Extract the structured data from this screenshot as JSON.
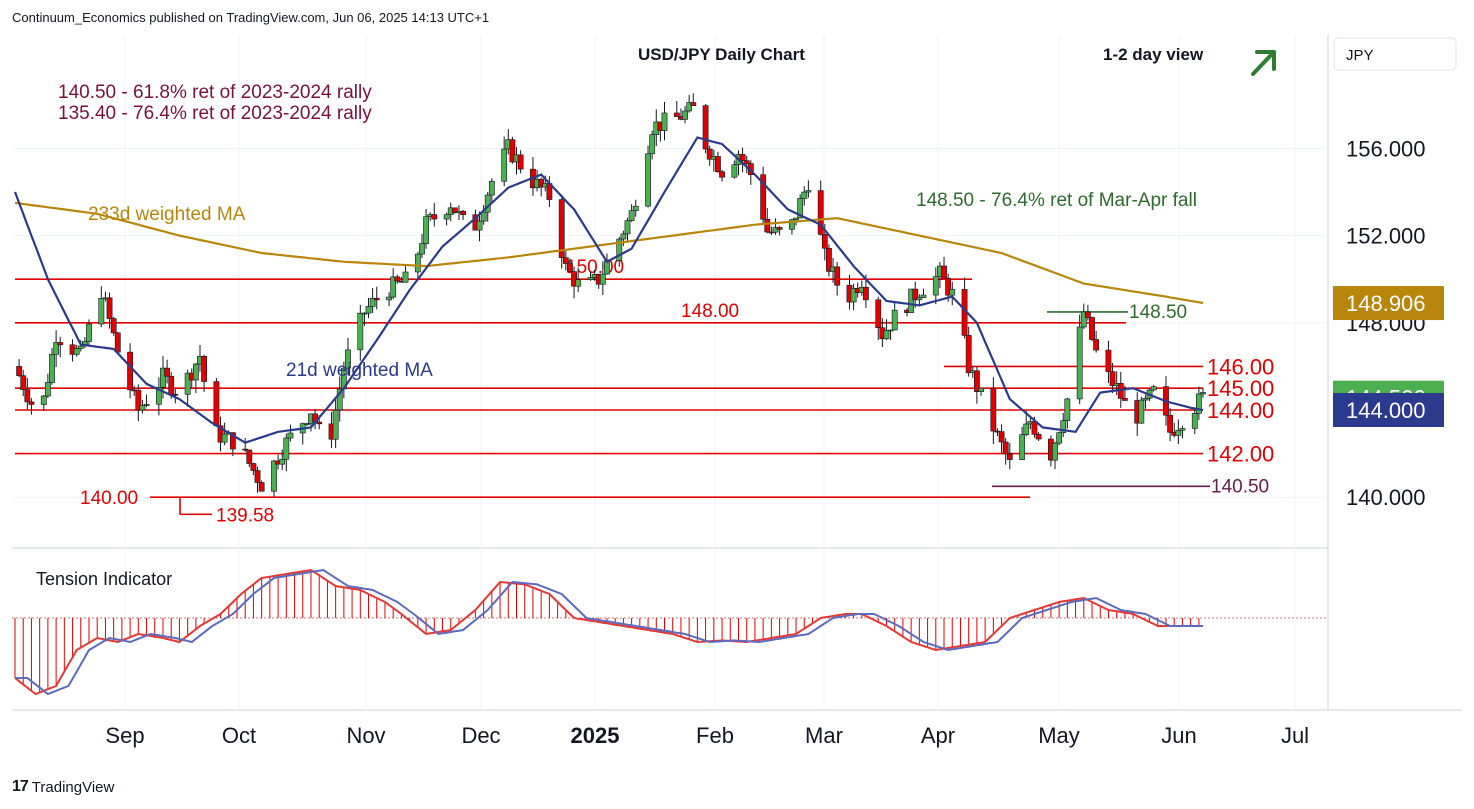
{
  "header": {
    "publisher": "Continuum_Economics published on TradingView.com, Jun 06, 2025 14:13 UTC+1"
  },
  "footer": {
    "brand": "TradingView",
    "brand_mark": "17"
  },
  "chart_data": {
    "type": "candlestick",
    "title": "USD/JPY Daily Chart",
    "view": "1-2 day view",
    "view_direction": "up",
    "currency": "JPY",
    "y_ticks": [
      "156.000",
      "152.000",
      "148.000",
      "140.000"
    ],
    "y_range": [
      138.0,
      158.5
    ],
    "x_months": [
      "Sep",
      "Oct",
      "Nov",
      "Dec",
      "2025",
      "Feb",
      "Mar",
      "Apr",
      "May",
      "Jun",
      "Jul"
    ],
    "annotations": {
      "ret_61": "140.50 - 61.8% ret of 2023-2024 rally",
      "ret_76": "135.40 - 76.4% ret of 2023-2024 rally",
      "ma233_label": "233d weighted MA",
      "ma21_label": "21d weighted MA",
      "marapr": "148.50 - 76.4% ret of Mar-Apr fall",
      "tension_label": "Tension Indicator"
    },
    "levels": [
      {
        "value": 150.0,
        "label": "150.00"
      },
      {
        "value": 148.0,
        "label": "148.00"
      },
      {
        "value": 148.5,
        "label": "148.50"
      },
      {
        "value": 146.0,
        "label": "146.00"
      },
      {
        "value": 145.0,
        "label": "145.00"
      },
      {
        "value": 144.0,
        "label": "144.00"
      },
      {
        "value": 142.0,
        "label": "142.00"
      },
      {
        "value": 140.5,
        "label": "140.50"
      },
      {
        "value": 140.0,
        "label": "140.00"
      },
      {
        "value": 139.58,
        "label": "139.58"
      }
    ],
    "price_badges": [
      {
        "value": "148.906",
        "color": "#b8860b"
      },
      {
        "value": "144.566",
        "color": "#4caf50"
      },
      {
        "value": "144.000",
        "color": "#2b3a8c"
      }
    ],
    "colors": {
      "up": "#4caf50",
      "down": "#e00000",
      "ma233": "#b8860b",
      "ma21": "#2b3a8c",
      "level": "#e00000"
    },
    "close_path": [
      [
        0,
        146.0
      ],
      [
        6,
        143.5
      ],
      [
        10,
        147.5
      ],
      [
        16,
        146.5
      ],
      [
        21,
        149.5
      ],
      [
        26,
        146
      ],
      [
        30,
        144
      ],
      [
        36,
        145.5
      ],
      [
        40,
        144.8
      ],
      [
        45,
        146.5
      ],
      [
        48,
        143
      ],
      [
        54,
        142.5
      ],
      [
        60,
        140.6
      ],
      [
        66,
        142.5
      ],
      [
        72,
        144.0
      ],
      [
        76,
        142.0
      ],
      [
        80,
        146
      ],
      [
        85,
        148.5
      ],
      [
        90,
        149.5
      ],
      [
        96,
        150
      ],
      [
        100,
        152.5
      ],
      [
        106,
        153.5
      ],
      [
        111,
        152
      ],
      [
        116,
        154.5
      ],
      [
        120,
        156.0
      ],
      [
        126,
        154.5
      ],
      [
        130,
        153.8
      ],
      [
        134,
        150.5
      ],
      [
        138,
        149.5
      ],
      [
        142,
        150.0
      ],
      [
        146,
        151.5
      ],
      [
        150,
        153.0
      ],
      [
        155,
        157.0
      ],
      [
        160,
        157.3
      ],
      [
        165,
        157.8
      ],
      [
        168,
        156.2
      ],
      [
        172,
        155.0
      ],
      [
        176,
        155.8
      ],
      [
        180,
        154.5
      ],
      [
        183,
        152.2
      ],
      [
        188,
        152.0
      ],
      [
        193,
        154.5
      ],
      [
        197,
        151.0
      ],
      [
        202,
        149.0
      ],
      [
        206,
        150.0
      ],
      [
        211,
        147.5
      ],
      [
        215,
        148.5
      ],
      [
        220,
        149.5
      ],
      [
        225,
        150.2
      ],
      [
        229,
        149.0
      ],
      [
        232,
        146.0
      ],
      [
        238,
        143.2
      ],
      [
        242,
        141.5
      ],
      [
        247,
        143.5
      ],
      [
        252,
        142.0
      ],
      [
        256,
        144.5
      ],
      [
        260,
        148.5
      ],
      [
        264,
        146.0
      ],
      [
        268,
        145.0
      ],
      [
        272,
        143.5
      ],
      [
        277,
        144.8
      ],
      [
        281,
        143.0
      ],
      [
        286,
        144.0
      ],
      [
        289,
        144.566
      ]
    ],
    "ma21_path": [
      [
        0,
        154
      ],
      [
        8,
        150
      ],
      [
        16,
        147
      ],
      [
        24,
        146.8
      ],
      [
        32,
        145.2
      ],
      [
        40,
        144.5
      ],
      [
        48,
        143.4
      ],
      [
        56,
        142.5
      ],
      [
        64,
        143.0
      ],
      [
        72,
        143.2
      ],
      [
        80,
        145
      ],
      [
        88,
        147.2
      ],
      [
        96,
        149.5
      ],
      [
        104,
        151.5
      ],
      [
        112,
        152.8
      ],
      [
        120,
        154.2
      ],
      [
        128,
        154.8
      ],
      [
        136,
        153.2
      ],
      [
        144,
        150.8
      ],
      [
        150,
        151.4
      ],
      [
        158,
        154
      ],
      [
        166,
        156.5
      ],
      [
        172,
        156.2
      ],
      [
        180,
        154.8
      ],
      [
        188,
        153.2
      ],
      [
        196,
        152.5
      ],
      [
        204,
        150.6
      ],
      [
        212,
        149.0
      ],
      [
        220,
        148.8
      ],
      [
        228,
        149.2
      ],
      [
        234,
        148.0
      ],
      [
        242,
        144.5
      ],
      [
        250,
        143.2
      ],
      [
        258,
        143.0
      ],
      [
        264,
        144.8
      ],
      [
        272,
        145.0
      ],
      [
        280,
        144.4
      ],
      [
        286,
        144.1
      ],
      [
        289,
        144.0
      ]
    ],
    "ma233_path": [
      [
        0,
        153.5
      ],
      [
        20,
        153.0
      ],
      [
        40,
        152.0
      ],
      [
        60,
        151.2
      ],
      [
        80,
        150.8
      ],
      [
        100,
        150.6
      ],
      [
        120,
        151.0
      ],
      [
        140,
        151.5
      ],
      [
        160,
        152.0
      ],
      [
        180,
        152.5
      ],
      [
        200,
        152.8
      ],
      [
        220,
        152.0
      ],
      [
        240,
        151.2
      ],
      [
        260,
        149.8
      ],
      [
        280,
        149.2
      ],
      [
        289,
        148.906
      ]
    ],
    "tension_path": [
      [
        0,
        -0.75
      ],
      [
        5,
        -0.95
      ],
      [
        10,
        -0.85
      ],
      [
        15,
        -0.4
      ],
      [
        20,
        -0.25
      ],
      [
        25,
        -0.3
      ],
      [
        30,
        -0.2
      ],
      [
        36,
        -0.25
      ],
      [
        40,
        -0.3
      ],
      [
        45,
        -0.1
      ],
      [
        50,
        0.05
      ],
      [
        55,
        0.3
      ],
      [
        60,
        0.5
      ],
      [
        66,
        0.55
      ],
      [
        72,
        0.6
      ],
      [
        78,
        0.4
      ],
      [
        84,
        0.35
      ],
      [
        90,
        0.2
      ],
      [
        94,
        0.05
      ],
      [
        100,
        -0.2
      ],
      [
        106,
        -0.15
      ],
      [
        112,
        0.1
      ],
      [
        118,
        0.45
      ],
      [
        124,
        0.42
      ],
      [
        130,
        0.3
      ],
      [
        136,
        0.0
      ],
      [
        142,
        -0.05
      ],
      [
        148,
        -0.1
      ],
      [
        154,
        -0.15
      ],
      [
        160,
        -0.2
      ],
      [
        166,
        -0.3
      ],
      [
        172,
        -0.28
      ],
      [
        178,
        -0.3
      ],
      [
        184,
        -0.25
      ],
      [
        190,
        -0.2
      ],
      [
        196,
        0.0
      ],
      [
        202,
        0.05
      ],
      [
        206,
        0.05
      ],
      [
        212,
        -0.1
      ],
      [
        218,
        -0.3
      ],
      [
        224,
        -0.4
      ],
      [
        230,
        -0.35
      ],
      [
        236,
        -0.3
      ],
      [
        242,
        0.0
      ],
      [
        248,
        0.1
      ],
      [
        254,
        0.2
      ],
      [
        260,
        0.25
      ],
      [
        266,
        0.1
      ],
      [
        272,
        0.05
      ],
      [
        278,
        -0.1
      ],
      [
        284,
        -0.1
      ],
      [
        289,
        -0.1
      ]
    ]
  }
}
